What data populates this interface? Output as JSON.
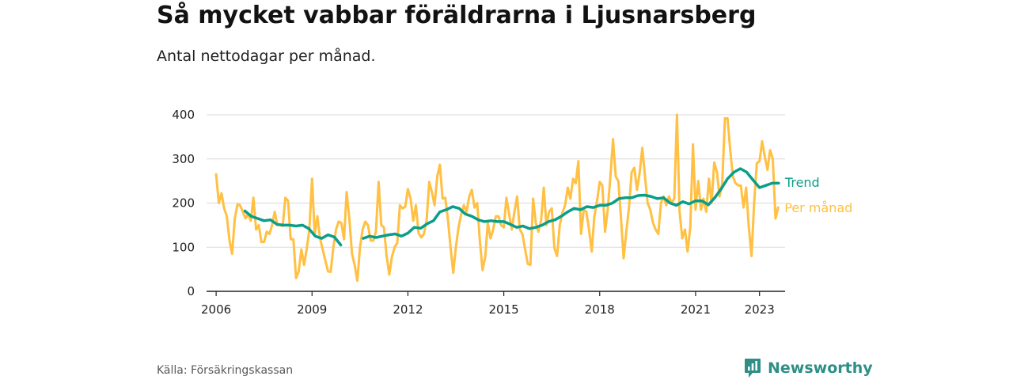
{
  "title": "Så mycket vabbar föräldrarna i Ljusnarsberg",
  "subtitle": "Antal nettodagar per månad.",
  "source": "Källa: Försäkringskassan",
  "brand": "Newsworthy",
  "colors": {
    "monthly": "#ffc043",
    "trend": "#0a9e8a",
    "grid": "#d9d9d9",
    "axis": "#222222",
    "brand": "#2e8f86"
  },
  "chart_data": {
    "type": "line",
    "ylim": [
      0,
      400
    ],
    "yticks": [
      0,
      100,
      200,
      300,
      400
    ],
    "xlim": [
      2005.7,
      2023.8
    ],
    "xticks": [
      {
        "value": 2006,
        "label": "2006"
      },
      {
        "value": 2009,
        "label": "2009"
      },
      {
        "value": 2012,
        "label": "2012"
      },
      {
        "value": 2015,
        "label": "2015"
      },
      {
        "value": 2018,
        "label": "2018"
      },
      {
        "value": 2021,
        "label": "2021"
      },
      {
        "value": 2023,
        "label": "2023"
      }
    ],
    "grid": true,
    "series": [
      {
        "name": "Per månad",
        "key": "monthly",
        "points": [
          [
            2006.0,
            265
          ],
          [
            2006.083,
            200
          ],
          [
            2006.167,
            222
          ],
          [
            2006.25,
            188
          ],
          [
            2006.333,
            170
          ],
          [
            2006.417,
            115
          ],
          [
            2006.5,
            85
          ],
          [
            2006.583,
            165
          ],
          [
            2006.667,
            197
          ],
          [
            2006.75,
            195
          ],
          [
            2006.833,
            180
          ],
          [
            2006.917,
            165
          ],
          [
            2007.0,
            175
          ],
          [
            2007.083,
            160
          ],
          [
            2007.167,
            212
          ],
          [
            2007.25,
            140
          ],
          [
            2007.333,
            150
          ],
          [
            2007.417,
            112
          ],
          [
            2007.5,
            112
          ],
          [
            2007.583,
            135
          ],
          [
            2007.667,
            130
          ],
          [
            2007.75,
            150
          ],
          [
            2007.833,
            180
          ],
          [
            2007.917,
            150
          ],
          [
            2008.0,
            150
          ],
          [
            2008.083,
            148
          ],
          [
            2008.167,
            212
          ],
          [
            2008.25,
            205
          ],
          [
            2008.333,
            118
          ],
          [
            2008.417,
            118
          ],
          [
            2008.5,
            30
          ],
          [
            2008.583,
            45
          ],
          [
            2008.667,
            95
          ],
          [
            2008.75,
            60
          ],
          [
            2008.833,
            95
          ],
          [
            2008.917,
            140
          ],
          [
            2009.0,
            255
          ],
          [
            2009.083,
            130
          ],
          [
            2009.167,
            170
          ],
          [
            2009.25,
            120
          ],
          [
            2009.333,
            95
          ],
          [
            2009.417,
            70
          ],
          [
            2009.5,
            45
          ],
          [
            2009.583,
            44
          ],
          [
            2009.667,
            100
          ],
          [
            2009.75,
            140
          ],
          [
            2009.833,
            158
          ],
          [
            2009.917,
            155
          ],
          [
            2010.0,
            118
          ],
          [
            2010.083,
            225
          ],
          [
            2010.167,
            165
          ],
          [
            2010.25,
            85
          ],
          [
            2010.333,
            60
          ],
          [
            2010.417,
            24
          ],
          [
            2010.5,
            100
          ],
          [
            2010.583,
            140
          ],
          [
            2010.667,
            158
          ],
          [
            2010.75,
            150
          ],
          [
            2010.833,
            115
          ],
          [
            2010.917,
            115
          ],
          [
            2011.0,
            135
          ],
          [
            2011.083,
            248
          ],
          [
            2011.167,
            150
          ],
          [
            2011.25,
            145
          ],
          [
            2011.333,
            80
          ],
          [
            2011.417,
            38
          ],
          [
            2011.5,
            78
          ],
          [
            2011.583,
            100
          ],
          [
            2011.667,
            110
          ],
          [
            2011.75,
            195
          ],
          [
            2011.833,
            188
          ],
          [
            2011.917,
            192
          ],
          [
            2012.0,
            232
          ],
          [
            2012.083,
            210
          ],
          [
            2012.167,
            160
          ],
          [
            2012.25,
            195
          ],
          [
            2012.333,
            132
          ],
          [
            2012.417,
            122
          ],
          [
            2012.5,
            130
          ],
          [
            2012.583,
            160
          ],
          [
            2012.667,
            248
          ],
          [
            2012.75,
            225
          ],
          [
            2012.833,
            195
          ],
          [
            2012.917,
            260
          ],
          [
            2013.0,
            287
          ],
          [
            2013.083,
            210
          ],
          [
            2013.167,
            212
          ],
          [
            2013.25,
            165
          ],
          [
            2013.333,
            100
          ],
          [
            2013.417,
            42
          ],
          [
            2013.5,
            100
          ],
          [
            2013.583,
            145
          ],
          [
            2013.667,
            175
          ],
          [
            2013.75,
            195
          ],
          [
            2013.833,
            180
          ],
          [
            2013.917,
            215
          ],
          [
            2014.0,
            230
          ],
          [
            2014.083,
            190
          ],
          [
            2014.167,
            200
          ],
          [
            2014.25,
            115
          ],
          [
            2014.333,
            48
          ],
          [
            2014.417,
            78
          ],
          [
            2014.5,
            155
          ],
          [
            2014.583,
            120
          ],
          [
            2014.667,
            140
          ],
          [
            2014.75,
            170
          ],
          [
            2014.833,
            170
          ],
          [
            2014.917,
            150
          ],
          [
            2015.0,
            145
          ],
          [
            2015.083,
            212
          ],
          [
            2015.167,
            175
          ],
          [
            2015.25,
            140
          ],
          [
            2015.333,
            180
          ],
          [
            2015.417,
            215
          ],
          [
            2015.5,
            140
          ],
          [
            2015.583,
            130
          ],
          [
            2015.667,
            95
          ],
          [
            2015.75,
            62
          ],
          [
            2015.833,
            60
          ],
          [
            2015.917,
            210
          ],
          [
            2016.0,
            155
          ],
          [
            2016.083,
            135
          ],
          [
            2016.167,
            160
          ],
          [
            2016.25,
            235
          ],
          [
            2016.333,
            150
          ],
          [
            2016.417,
            180
          ],
          [
            2016.5,
            188
          ],
          [
            2016.583,
            98
          ],
          [
            2016.667,
            80
          ],
          [
            2016.75,
            150
          ],
          [
            2016.833,
            178
          ],
          [
            2016.917,
            195
          ],
          [
            2017.0,
            235
          ],
          [
            2017.083,
            210
          ],
          [
            2017.167,
            255
          ],
          [
            2017.25,
            245
          ],
          [
            2017.333,
            295
          ],
          [
            2017.417,
            130
          ],
          [
            2017.5,
            185
          ],
          [
            2017.583,
            180
          ],
          [
            2017.667,
            140
          ],
          [
            2017.75,
            90
          ],
          [
            2017.833,
            170
          ],
          [
            2017.917,
            205
          ],
          [
            2018.0,
            248
          ],
          [
            2018.083,
            240
          ],
          [
            2018.167,
            135
          ],
          [
            2018.25,
            185
          ],
          [
            2018.333,
            258
          ],
          [
            2018.417,
            345
          ],
          [
            2018.5,
            260
          ],
          [
            2018.583,
            250
          ],
          [
            2018.667,
            165
          ],
          [
            2018.75,
            75
          ],
          [
            2018.833,
            135
          ],
          [
            2018.917,
            190
          ],
          [
            2019.0,
            270
          ],
          [
            2019.083,
            280
          ],
          [
            2019.167,
            230
          ],
          [
            2019.25,
            268
          ],
          [
            2019.333,
            325
          ],
          [
            2019.417,
            260
          ],
          [
            2019.5,
            200
          ],
          [
            2019.583,
            185
          ],
          [
            2019.667,
            155
          ],
          [
            2019.75,
            140
          ],
          [
            2019.833,
            130
          ],
          [
            2019.917,
            200
          ],
          [
            2020.0,
            215
          ],
          [
            2020.083,
            195
          ],
          [
            2020.167,
            215
          ],
          [
            2020.25,
            200
          ],
          [
            2020.333,
            210
          ],
          [
            2020.417,
            400
          ],
          [
            2020.5,
            180
          ],
          [
            2020.583,
            120
          ],
          [
            2020.667,
            140
          ],
          [
            2020.75,
            90
          ],
          [
            2020.833,
            145
          ],
          [
            2020.917,
            333
          ],
          [
            2021.0,
            185
          ],
          [
            2021.083,
            250
          ],
          [
            2021.167,
            185
          ],
          [
            2021.25,
            210
          ],
          [
            2021.333,
            180
          ],
          [
            2021.417,
            255
          ],
          [
            2021.5,
            200
          ],
          [
            2021.583,
            292
          ],
          [
            2021.667,
            270
          ],
          [
            2021.75,
            215
          ],
          [
            2021.833,
            245
          ],
          [
            2021.917,
            392
          ],
          [
            2022.0,
            392
          ],
          [
            2022.083,
            320
          ],
          [
            2022.167,
            260
          ],
          [
            2022.25,
            245
          ],
          [
            2022.333,
            240
          ],
          [
            2022.417,
            240
          ],
          [
            2022.5,
            190
          ],
          [
            2022.583,
            235
          ],
          [
            2022.667,
            145
          ],
          [
            2022.75,
            80
          ],
          [
            2022.833,
            200
          ],
          [
            2022.917,
            290
          ],
          [
            2023.0,
            295
          ],
          [
            2023.083,
            340
          ],
          [
            2023.167,
            305
          ],
          [
            2023.25,
            275
          ],
          [
            2023.333,
            320
          ],
          [
            2023.417,
            300
          ],
          [
            2023.5,
            165
          ],
          [
            2023.583,
            190
          ]
        ]
      },
      {
        "name": "Trend",
        "key": "trend",
        "points": [
          [
            2006.9,
            182
          ],
          [
            2007.1,
            170
          ],
          [
            2007.3,
            165
          ],
          [
            2007.5,
            160
          ],
          [
            2007.7,
            162
          ],
          [
            2007.9,
            152
          ],
          [
            2008.1,
            150
          ],
          [
            2008.3,
            150
          ],
          [
            2008.5,
            148
          ],
          [
            2008.7,
            150
          ],
          [
            2008.9,
            142
          ],
          [
            2009.1,
            125
          ],
          [
            2009.3,
            120
          ],
          [
            2009.5,
            128
          ],
          [
            2009.7,
            123
          ],
          [
            2009.9,
            105
          ],
          [
            2010.6,
            120
          ],
          [
            2010.8,
            125
          ],
          [
            2011.0,
            122
          ],
          [
            2011.2,
            125
          ],
          [
            2011.4,
            128
          ],
          [
            2011.6,
            130
          ],
          [
            2011.8,
            125
          ],
          [
            2012.0,
            132
          ],
          [
            2012.2,
            145
          ],
          [
            2012.4,
            143
          ],
          [
            2012.6,
            153
          ],
          [
            2012.8,
            160
          ],
          [
            2013.0,
            180
          ],
          [
            2013.2,
            185
          ],
          [
            2013.4,
            192
          ],
          [
            2013.6,
            188
          ],
          [
            2013.8,
            175
          ],
          [
            2014.0,
            170
          ],
          [
            2014.2,
            162
          ],
          [
            2014.4,
            158
          ],
          [
            2014.6,
            160
          ],
          [
            2014.8,
            158
          ],
          [
            2015.0,
            158
          ],
          [
            2015.2,
            152
          ],
          [
            2015.4,
            145
          ],
          [
            2015.6,
            148
          ],
          [
            2015.8,
            142
          ],
          [
            2016.0,
            145
          ],
          [
            2016.2,
            150
          ],
          [
            2016.4,
            158
          ],
          [
            2016.6,
            162
          ],
          [
            2016.8,
            170
          ],
          [
            2017.0,
            180
          ],
          [
            2017.2,
            188
          ],
          [
            2017.4,
            185
          ],
          [
            2017.6,
            192
          ],
          [
            2017.8,
            190
          ],
          [
            2018.0,
            195
          ],
          [
            2018.2,
            195
          ],
          [
            2018.4,
            200
          ],
          [
            2018.6,
            210
          ],
          [
            2018.8,
            212
          ],
          [
            2019.0,
            212
          ],
          [
            2019.2,
            217
          ],
          [
            2019.4,
            218
          ],
          [
            2019.6,
            215
          ],
          [
            2019.8,
            210
          ],
          [
            2020.0,
            212
          ],
          [
            2020.2,
            200
          ],
          [
            2020.4,
            195
          ],
          [
            2020.6,
            203
          ],
          [
            2020.8,
            198
          ],
          [
            2021.0,
            205
          ],
          [
            2021.2,
            205
          ],
          [
            2021.4,
            196
          ],
          [
            2021.6,
            212
          ],
          [
            2021.8,
            232
          ],
          [
            2022.0,
            255
          ],
          [
            2022.2,
            270
          ],
          [
            2022.4,
            278
          ],
          [
            2022.6,
            270
          ],
          [
            2022.8,
            252
          ],
          [
            2023.0,
            235
          ],
          [
            2023.2,
            240
          ],
          [
            2023.4,
            245
          ],
          [
            2023.6,
            245
          ]
        ]
      }
    ]
  }
}
